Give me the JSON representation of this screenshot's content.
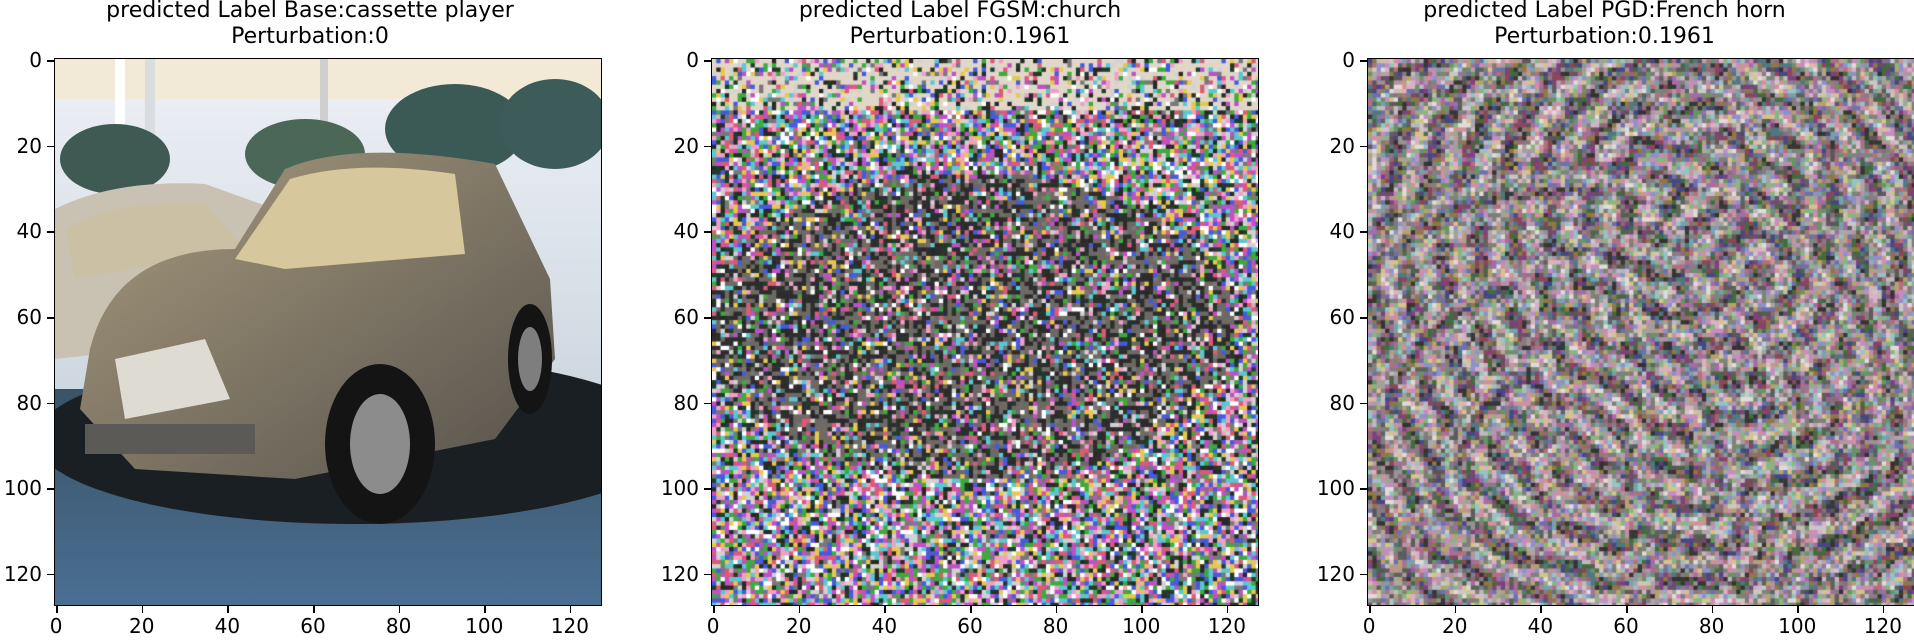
{
  "panels": [
    {
      "title_line1": "predicted Label Base:cassette player",
      "title_line2": "Perturbation:0",
      "image_kind": "clean",
      "yticks": [
        "0",
        "20",
        "40",
        "60",
        "80",
        "100",
        "120"
      ],
      "xticks": [
        "0",
        "20",
        "40",
        "60",
        "80",
        "100",
        "120"
      ]
    },
    {
      "title_line1": "predicted Label FGSM:church",
      "title_line2": "Perturbation:0.1961",
      "image_kind": "fgsm",
      "yticks": [
        "0",
        "20",
        "40",
        "60",
        "80",
        "100",
        "120"
      ],
      "xticks": [
        "0",
        "20",
        "40",
        "60",
        "80",
        "100",
        "120"
      ]
    },
    {
      "title_line1": "predicted Label PGD:French horn",
      "title_line2": "Perturbation:0.1961",
      "image_kind": "pgd",
      "yticks": [
        "0",
        "20",
        "40",
        "60",
        "80",
        "100",
        "120"
      ],
      "xticks": [
        "0",
        "20",
        "40",
        "60",
        "80",
        "100",
        "120"
      ]
    }
  ],
  "axis": {
    "min": 0,
    "max": 128,
    "tick_values": [
      0,
      20,
      40,
      60,
      80,
      100,
      120
    ]
  }
}
